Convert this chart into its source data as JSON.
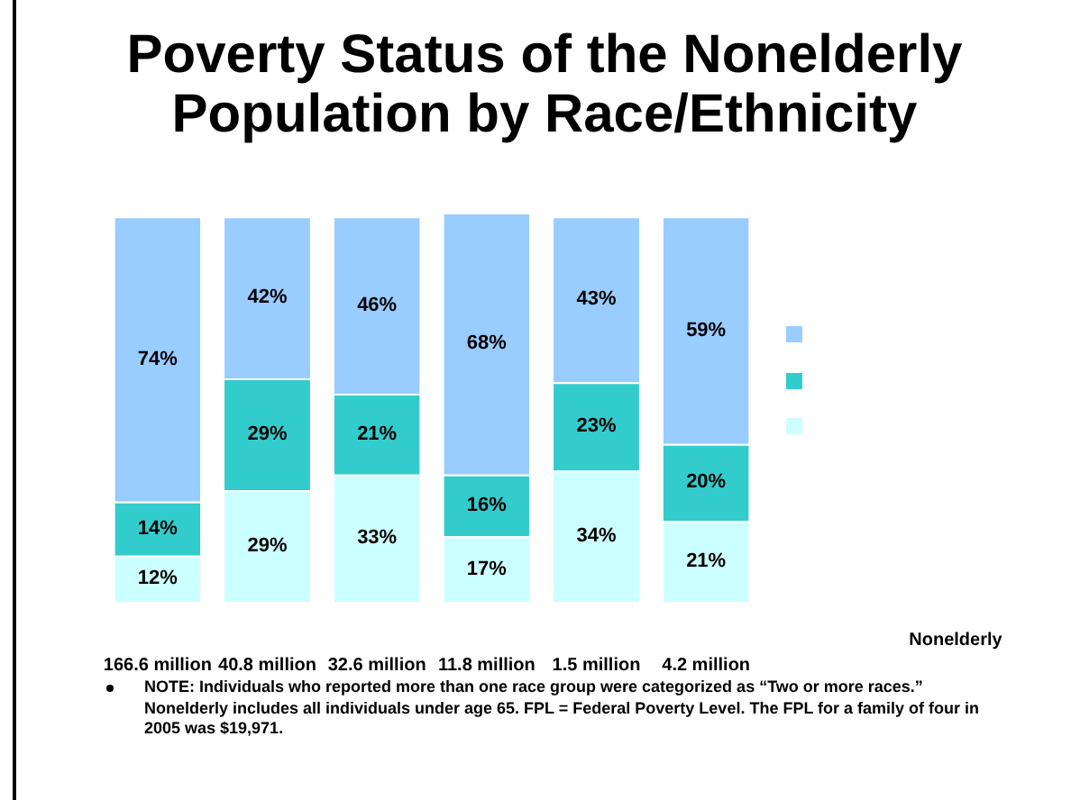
{
  "chart_data": {
    "type": "bar",
    "title": "Poverty Status of the Nonelderly Population by Race/Ethnicity",
    "categories": [
      "166.6 million",
      "40.8 million",
      "32.6 million",
      "11.8 million",
      "1.5 million",
      "4.2 million"
    ],
    "stacked": true,
    "series": [
      {
        "color": "#ccffff",
        "values": [
          12,
          29,
          33,
          17,
          34,
          21
        ],
        "value_labels": [
          "12%",
          "29%",
          "33%",
          "17%",
          "34%",
          "21%"
        ]
      },
      {
        "color": "#33cccc",
        "values": [
          14,
          29,
          21,
          16,
          23,
          20
        ],
        "value_labels": [
          "14%",
          "29%",
          "21%",
          "16%",
          "23%",
          "20%"
        ]
      },
      {
        "color": "#99ccff",
        "values": [
          74,
          42,
          46,
          68,
          43,
          59
        ],
        "value_labels": [
          "74%",
          "42%",
          "46%",
          "68%",
          "43%",
          "59%"
        ]
      }
    ],
    "annotations": [
      "Nonelderly",
      "NOTE: Individuals who reported more than one race group were categorized as “Two or more races.”  Nonelderly includes all individuals under age 65.  FPL = Federal Poverty Level.  The FPL for a family of four in 2005 was $19,971."
    ]
  }
}
